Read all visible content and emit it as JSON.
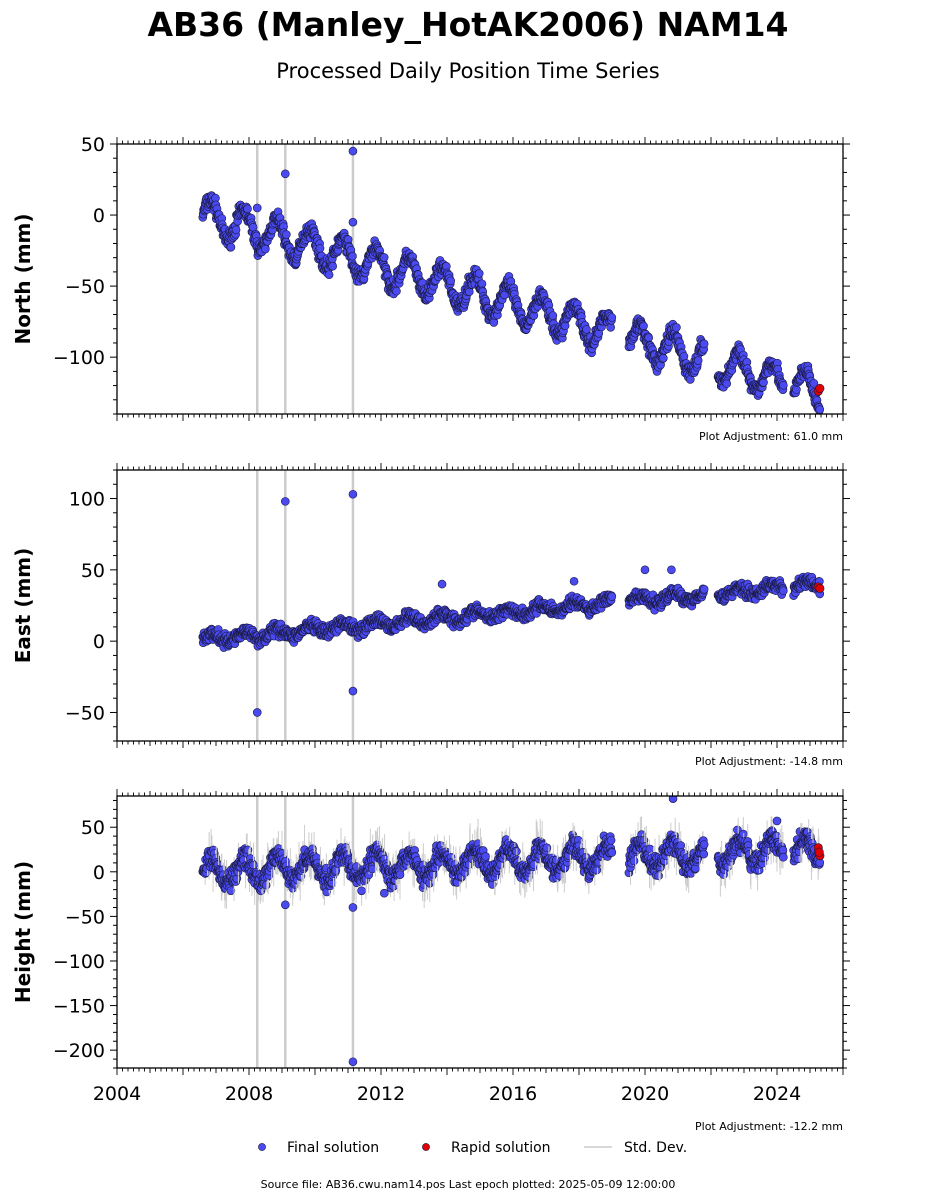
{
  "title": "AB36 (Manley_HotAK2006) NAM14",
  "subtitle": "Processed Daily Position Time Series",
  "footer": "Source file: AB36.cwu.nam14.pos  Last epoch plotted: 2025-05-09 12:00:00",
  "colors": {
    "final": "#4a4af0",
    "final_edge": "#1a1a40",
    "rapid": "#e00000",
    "stddev": "#cccccc"
  },
  "chart_data": [
    {
      "type": "scatter",
      "ylabel": "North (mm)",
      "adjustment": "Plot Adjustment: 61.0 mm",
      "xlim": [
        2004,
        2026
      ],
      "ylim": [
        -140,
        50
      ],
      "yticks": [
        50,
        0,
        -50,
        -100
      ],
      "ytick_labels": [
        "50",
        "0",
        "−50",
        "−100"
      ],
      "trend": {
        "start": [
          2006.6,
          0
        ],
        "end": [
          2025.3,
          -125
        ]
      },
      "seasonal_amplitude": 12,
      "scatter_noise": 4,
      "outliers": [
        {
          "x": 2008.25,
          "y": 5
        },
        {
          "x": 2009.1,
          "y": 29
        },
        {
          "x": 2011.15,
          "y": 45
        },
        {
          "x": 2011.15,
          "y": -5
        }
      ],
      "rapid": [
        {
          "x": 2025.25,
          "y": -124
        },
        {
          "x": 2025.3,
          "y": -122
        }
      ]
    },
    {
      "type": "scatter",
      "ylabel": "East (mm)",
      "adjustment": "Plot Adjustment: -14.8 mm",
      "xlim": [
        2004,
        2026
      ],
      "ylim": [
        -70,
        120
      ],
      "yticks": [
        100,
        50,
        0,
        -50
      ],
      "ytick_labels": [
        "100",
        "50",
        "0",
        "−50"
      ],
      "trend": {
        "start": [
          2006.6,
          1
        ],
        "end": [
          2025.3,
          40
        ]
      },
      "seasonal_amplitude": 3,
      "scatter_noise": 3,
      "outliers": [
        {
          "x": 2008.25,
          "y": -50
        },
        {
          "x": 2009.1,
          "y": 98
        },
        {
          "x": 2011.15,
          "y": 103
        },
        {
          "x": 2011.15,
          "y": -35
        },
        {
          "x": 2013.85,
          "y": 40
        },
        {
          "x": 2017.85,
          "y": 42
        },
        {
          "x": 2020.0,
          "y": 50
        },
        {
          "x": 2020.8,
          "y": 50
        }
      ],
      "rapid": [
        {
          "x": 2025.25,
          "y": 38
        },
        {
          "x": 2025.3,
          "y": 37
        }
      ]
    },
    {
      "type": "scatter",
      "ylabel": "Height (mm)",
      "adjustment": "Plot Adjustment: -12.2 mm",
      "xlim": [
        2004,
        2026
      ],
      "ylim": [
        -220,
        85
      ],
      "yticks": [
        50,
        0,
        -50,
        -100,
        -150,
        -200
      ],
      "ytick_labels": [
        "50",
        "0",
        "−50",
        "−100",
        "−150",
        "−200"
      ],
      "trend": {
        "start": [
          2006.6,
          0
        ],
        "end": [
          2025.3,
          25
        ]
      },
      "seasonal_amplitude": 14,
      "scatter_noise": 8,
      "outliers": [
        {
          "x": 2009.1,
          "y": -37
        },
        {
          "x": 2011.15,
          "y": -40
        },
        {
          "x": 2011.15,
          "y": -213
        },
        {
          "x": 2012.1,
          "y": -24
        },
        {
          "x": 2020.85,
          "y": 82
        },
        {
          "x": 2024.0,
          "y": 57
        }
      ],
      "rapid": [
        {
          "x": 2025.25,
          "y": 27
        },
        {
          "x": 2025.3,
          "y": 18
        },
        {
          "x": 2025.28,
          "y": 22
        }
      ]
    }
  ],
  "shared_x": {
    "xticks": [
      2004,
      2008,
      2012,
      2016,
      2020,
      2024
    ],
    "xtick_labels": [
      "2004",
      "2008",
      "2012",
      "2016",
      "2020",
      "2024"
    ],
    "gaps": [
      [
        2019.0,
        2019.5
      ],
      [
        2021.8,
        2022.2
      ],
      [
        2024.2,
        2024.5
      ]
    ],
    "stddev_bars": [
      2008.25,
      2009.1,
      2011.15
    ]
  },
  "legend": {
    "final": "Final solution",
    "rapid": "Rapid solution",
    "stddev": "Std. Dev."
  }
}
